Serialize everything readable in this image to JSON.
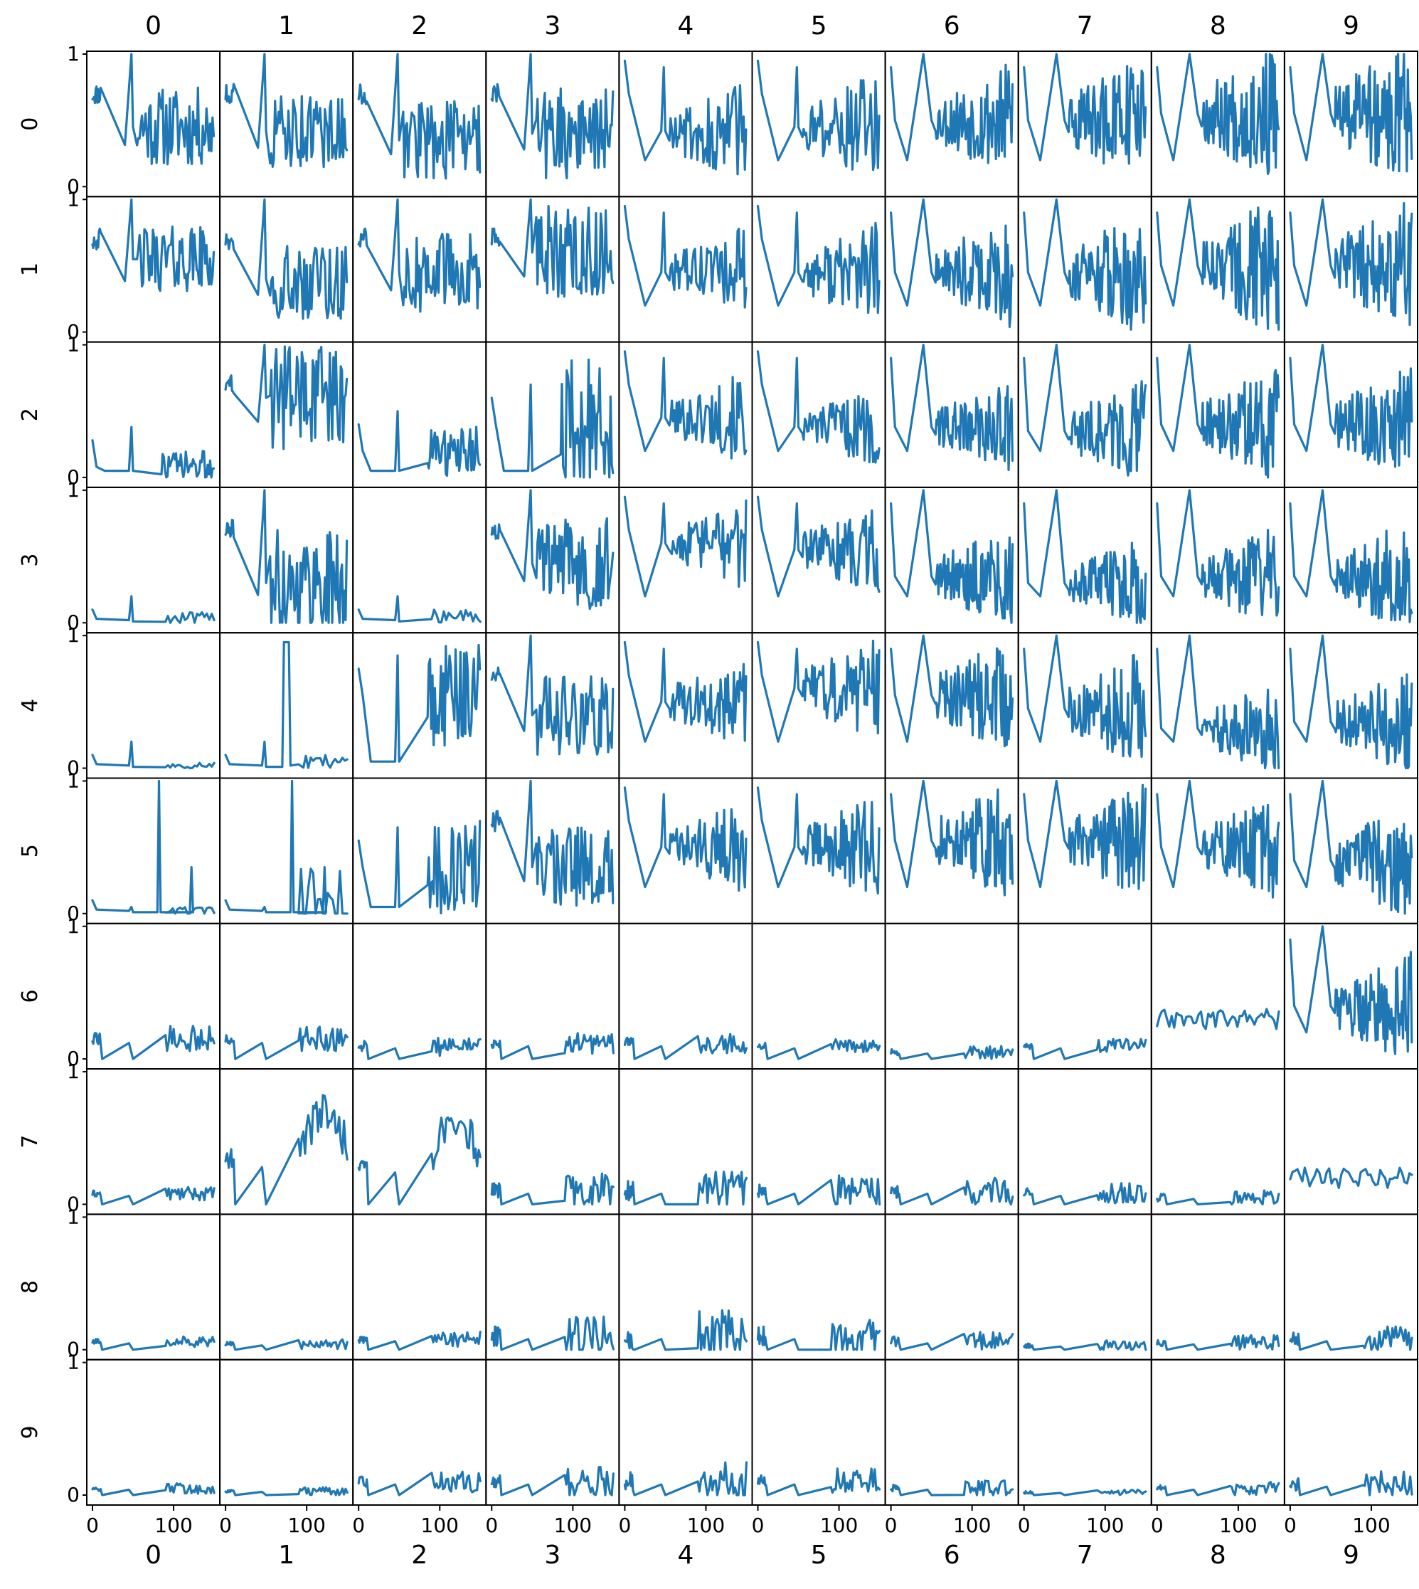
{
  "chart_data": {
    "type": "line",
    "layout": "small-multiples-grid",
    "column_labels": [
      "0",
      "1",
      "2",
      "3",
      "4",
      "5",
      "6",
      "7",
      "8",
      "9"
    ],
    "row_labels": [
      "0",
      "1",
      "2",
      "3",
      "4",
      "5",
      "6",
      "7",
      "8",
      "9"
    ],
    "xlabels": [
      "0",
      "1",
      "2",
      "3",
      "4",
      "5",
      "6",
      "7",
      "8",
      "9"
    ],
    "xlim": [
      0,
      150
    ],
    "ylim": [
      0,
      1
    ],
    "x_ticks": [
      0,
      100
    ],
    "x_tick_labels": [
      "0",
      "100"
    ],
    "y_ticks": [
      0,
      1
    ],
    "y_tick_labels": [
      "0",
      "1"
    ],
    "colors": {
      "series": "#1f77b4",
      "frame": "#000000",
      "background": "#ffffff"
    },
    "grid": false,
    "legend": "none",
    "panel_profiles": [
      [
        "A:0.45,0.3",
        "A:0.42,0.28",
        "B:0.35,0.3",
        "B:0.4,0.35",
        "C:0.42,0.4",
        "C:0.45,0.42",
        "D:0.5,0.45",
        "D:0.5,0.5",
        "D:0.55,0.55",
        "D:0.55,0.55"
      ],
      [
        "A:0.55,0.25",
        "A:0.4,0.3",
        "B:0.45,0.3",
        "B:0.6,0.35",
        "C:0.45,0.35",
        "C:0.45,0.4",
        "D:0.45,0.45",
        "D:0.45,0.5",
        "D:0.5,0.55",
        "D:0.5,0.55"
      ],
      [
        "E:0.08,0.12",
        "A:0.6,0.4",
        "E:0.2,0.2",
        "E:0.4,0.5",
        "C:0.45,0.35",
        "C:0.38,0.3",
        "D:0.38,0.35",
        "D:0.35,0.4",
        "D:0.4,0.45",
        "D:0.4,0.45"
      ],
      [
        "F:0.03,0.05",
        "A:0.3,0.4",
        "F:0.05,0.05",
        "A:0.45,0.35",
        "C:0.6,0.35",
        "C:0.55,0.35",
        "D:0.35,0.4",
        "D:0.3,0.35",
        "D:0.35,0.4",
        "D:0.35,0.45"
      ],
      [
        "F:0.02,0.03",
        "G:0.05,0.05",
        "E:0.55,0.4",
        "A:0.4,0.3",
        "C:0.5,0.35",
        "C:0.6,0.4",
        "D:0.55,0.45",
        "D:0.45,0.45",
        "D:0.3,0.35",
        "D:0.35,0.4"
      ],
      [
        "H:0.02,0.03",
        "H:0.1,0.25",
        "E:0.35,0.35",
        "A:0.35,0.3",
        "C:0.5,0.35",
        "C:0.5,0.4",
        "D:0.55,0.45",
        "D:0.55,0.45",
        "D:0.5,0.4",
        "D:0.4,0.45"
      ],
      [
        "I:0.15,0.1",
        "I:0.15,0.1",
        "I:0.1,0.08",
        "I:0.12,0.08",
        "I:0.12,0.08",
        "I:0.1,0.05",
        "I:0.05,0.05",
        "I:0.1,0.05",
        "J:0.3,0.08",
        "D:0.4,0.45"
      ],
      [
        "I:0.08,0.05",
        "K:0.35,0.15",
        "K:0.3,0.15",
        "I:0.1,0.15",
        "I:0.1,0.15",
        "I:0.1,0.12",
        "I:0.1,0.1",
        "I:0.08,0.08",
        "I:0.05,0.06",
        "J:0.2,0.08"
      ],
      [
        "I:0.06,0.04",
        "I:0.04,0.04",
        "I:0.08,0.06",
        "I:0.1,0.15",
        "I:0.1,0.2",
        "I:0.1,0.15",
        "I:0.06,0.08",
        "I:0.03,0.04",
        "I:0.05,0.06",
        "I:0.08,0.1"
      ],
      [
        "I:0.05,0.04",
        "I:0.03,0.03",
        "I:0.1,0.08",
        "I:0.1,0.12",
        "I:0.1,0.15",
        "I:0.1,0.1",
        "I:0.05,0.06",
        "I:0.02,0.02",
        "I:0.05,0.05",
        "I:0.08,0.1"
      ]
    ]
  }
}
